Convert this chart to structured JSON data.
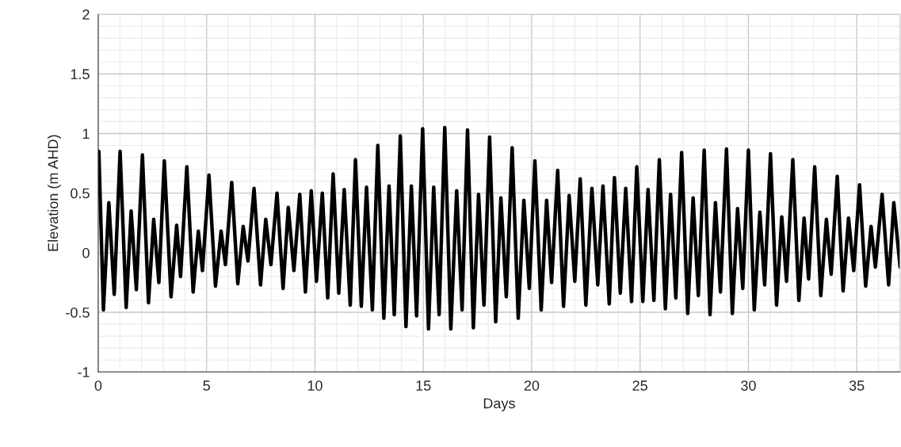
{
  "chart_data": {
    "type": "line",
    "xlabel": "Days",
    "ylabel": "Elevation (m AHD)",
    "xlim": [
      0,
      37
    ],
    "xticks": [
      0,
      5,
      10,
      15,
      20,
      25,
      30,
      35
    ],
    "ylim": [
      -1,
      2
    ],
    "yticks": [
      -1,
      -0.5,
      0,
      0.5,
      1,
      1.5,
      2
    ],
    "grid": true,
    "marker": "none",
    "line_style": "solid",
    "series": [
      {
        "color": "#000000",
        "x": [
          0,
          0.03,
          0.24,
          0.49,
          0.74,
          1.01,
          1.29,
          1.52,
          1.76,
          2.04,
          2.32,
          2.56,
          2.8,
          3.05,
          3.36,
          3.62,
          3.8,
          4.09,
          4.38,
          4.62,
          4.81,
          5.11,
          5.41,
          5.67,
          5.87,
          6.16,
          6.44,
          6.69,
          6.91,
          7.19,
          7.49,
          7.73,
          7.97,
          8.25,
          8.53,
          8.77,
          9.03,
          9.3,
          9.56,
          9.83,
          10.07,
          10.34,
          10.59,
          10.84,
          11.1,
          11.35,
          11.63,
          11.87,
          12.14,
          12.38,
          12.65,
          12.9,
          13.18,
          13.42,
          13.66,
          13.94,
          14.2,
          14.45,
          14.69,
          14.97,
          15.24,
          15.48,
          15.73,
          15.99,
          16.27,
          16.54,
          16.79,
          17.04,
          17.31,
          17.55,
          17.8,
          18.06,
          18.34,
          18.58,
          18.83,
          19.1,
          19.38,
          19.64,
          19.89,
          20.15,
          20.44,
          20.69,
          20.92,
          21.2,
          21.47,
          21.73,
          21.99,
          22.24,
          22.5,
          22.78,
          23.05,
          23.29,
          23.58,
          23.82,
          24.09,
          24.34,
          24.61,
          24.85,
          25.13,
          25.37,
          25.64,
          25.89,
          26.17,
          26.41,
          26.65,
          26.92,
          27.2,
          27.45,
          27.69,
          27.96,
          28.23,
          28.48,
          28.71,
          28.99,
          29.26,
          29.5,
          29.74,
          30,
          30.27,
          30.53,
          30.75,
          31.02,
          31.3,
          31.54,
          31.76,
          32.05,
          32.33,
          32.57,
          32.78,
          33.06,
          33.34,
          33.6,
          33.82,
          34.1,
          34.37,
          34.62,
          34.86,
          35.13,
          35.41,
          35.66,
          35.86,
          36.17,
          36.47,
          36.71,
          37
        ],
        "values": [
          0.6,
          0.85,
          -0.48,
          0.42,
          -0.35,
          0.85,
          -0.46,
          0.35,
          -0.31,
          0.82,
          -0.42,
          0.28,
          -0.25,
          0.77,
          -0.37,
          0.23,
          -0.2,
          0.72,
          -0.33,
          0.18,
          -0.15,
          0.65,
          -0.28,
          0.18,
          -0.1,
          0.59,
          -0.26,
          0.22,
          -0.07,
          0.54,
          -0.27,
          0.28,
          -0.1,
          0.5,
          -0.3,
          0.38,
          -0.15,
          0.49,
          -0.33,
          0.52,
          -0.24,
          0.5,
          -0.38,
          0.66,
          -0.34,
          0.53,
          -0.44,
          0.78,
          -0.45,
          0.55,
          -0.48,
          0.9,
          -0.55,
          0.56,
          -0.52,
          0.98,
          -0.62,
          0.56,
          -0.53,
          1.04,
          -0.64,
          0.55,
          -0.52,
          1.05,
          -0.64,
          0.52,
          -0.48,
          1.03,
          -0.63,
          0.49,
          -0.44,
          0.97,
          -0.58,
          0.46,
          -0.37,
          0.88,
          -0.55,
          0.44,
          -0.3,
          0.77,
          -0.48,
          0.44,
          -0.25,
          0.69,
          -0.45,
          0.48,
          -0.24,
          0.62,
          -0.44,
          0.54,
          -0.27,
          0.56,
          -0.43,
          0.63,
          -0.34,
          0.54,
          -0.41,
          0.72,
          -0.41,
          0.53,
          -0.4,
          0.78,
          -0.47,
          0.49,
          -0.38,
          0.84,
          -0.51,
          0.46,
          -0.36,
          0.86,
          -0.52,
          0.42,
          -0.33,
          0.87,
          -0.51,
          0.37,
          -0.3,
          0.86,
          -0.48,
          0.34,
          -0.27,
          0.83,
          -0.44,
          0.3,
          -0.24,
          0.78,
          -0.4,
          0.29,
          -0.22,
          0.72,
          -0.36,
          0.28,
          -0.18,
          0.64,
          -0.32,
          0.29,
          -0.15,
          0.57,
          -0.28,
          0.22,
          -0.12,
          0.49,
          -0.27,
          0.42,
          -0.12
        ]
      }
    ]
  }
}
